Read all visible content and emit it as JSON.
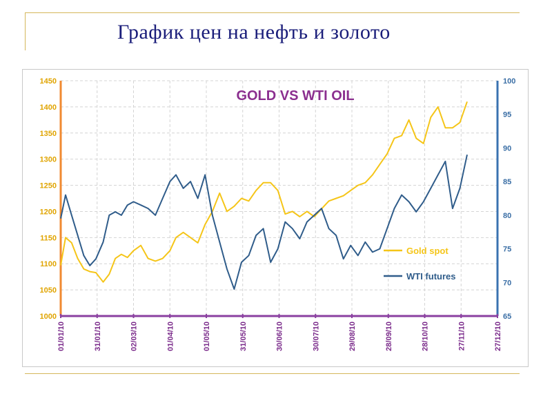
{
  "slide": {
    "title": "График цен на нефть и золото"
  },
  "colors": {
    "gold": "#f5c518",
    "oil": "#2f5c8a",
    "left_axis": "#f08a30",
    "right_axis": "#3a72b0",
    "base_axis": "#8a3fa0",
    "title": "#8b2f8f",
    "frame": "#d4b65a"
  },
  "chart_data": {
    "type": "line",
    "title": "GOLD VS WTI  OIL",
    "grid": true,
    "legend_position": "right",
    "x_ticks": [
      "01/01/10",
      "31/01/10",
      "02/03/10",
      "01/04/10",
      "01/05/10",
      "31/05/10",
      "30/06/10",
      "30/07/10",
      "29/08/10",
      "28/09/10",
      "28/10/10",
      "27/11/10",
      "27/12/10"
    ],
    "x_range": [
      "01/01/10",
      "27/12/10"
    ],
    "y_left": {
      "ticks": [
        1000,
        1050,
        1100,
        1150,
        1200,
        1250,
        1300,
        1350,
        1400,
        1450
      ],
      "range": [
        1000,
        1450
      ]
    },
    "y_right": {
      "ticks": [
        65,
        70,
        75,
        80,
        85,
        90,
        95,
        100
      ],
      "range": [
        65,
        100
      ]
    },
    "series": [
      {
        "name": "Gold spot",
        "axis": "left",
        "x": [
          "01/01/10",
          "05/01/10",
          "10/01/10",
          "15/01/10",
          "20/01/10",
          "25/01/10",
          "30/01/10",
          "05/02/10",
          "10/02/10",
          "15/02/10",
          "20/02/10",
          "25/02/10",
          "02/03/10",
          "08/03/10",
          "14/03/10",
          "20/03/10",
          "26/03/10",
          "01/04/10",
          "06/04/10",
          "12/04/10",
          "18/04/10",
          "24/04/10",
          "30/04/10",
          "06/05/10",
          "12/05/10",
          "18/05/10",
          "24/05/10",
          "30/05/10",
          "05/06/10",
          "11/06/10",
          "17/06/10",
          "23/06/10",
          "29/06/10",
          "05/07/10",
          "11/07/10",
          "17/07/10",
          "23/07/10",
          "29/07/10",
          "04/08/10",
          "10/08/10",
          "16/08/10",
          "22/08/10",
          "28/08/10",
          "03/09/10",
          "09/09/10",
          "15/09/10",
          "21/09/10",
          "27/09/10",
          "03/10/10",
          "09/10/10",
          "15/10/10",
          "21/10/10",
          "27/10/10",
          "02/11/10",
          "08/11/10",
          "14/11/10",
          "20/11/10",
          "26/11/10",
          "02/12/10"
        ],
        "values": [
          1097,
          1150,
          1140,
          1110,
          1090,
          1085,
          1083,
          1065,
          1080,
          1110,
          1118,
          1112,
          1125,
          1135,
          1110,
          1105,
          1110,
          1125,
          1150,
          1160,
          1150,
          1140,
          1175,
          1200,
          1235,
          1200,
          1210,
          1225,
          1220,
          1240,
          1255,
          1255,
          1240,
          1195,
          1200,
          1190,
          1200,
          1190,
          1205,
          1220,
          1225,
          1230,
          1240,
          1250,
          1255,
          1270,
          1290,
          1310,
          1340,
          1345,
          1375,
          1340,
          1330,
          1380,
          1400,
          1360,
          1360,
          1370,
          1410
        ]
      },
      {
        "name": "WTI futures",
        "axis": "right",
        "x": [
          "01/01/10",
          "05/01/10",
          "10/01/10",
          "15/01/10",
          "20/01/10",
          "25/01/10",
          "30/01/10",
          "05/02/10",
          "10/02/10",
          "15/02/10",
          "20/02/10",
          "25/02/10",
          "02/03/10",
          "08/03/10",
          "14/03/10",
          "20/03/10",
          "26/03/10",
          "01/04/10",
          "06/04/10",
          "12/04/10",
          "18/04/10",
          "24/04/10",
          "30/04/10",
          "06/05/10",
          "12/05/10",
          "18/05/10",
          "24/05/10",
          "30/05/10",
          "05/06/10",
          "11/06/10",
          "17/06/10",
          "23/06/10",
          "29/06/10",
          "05/07/10",
          "11/07/10",
          "17/07/10",
          "23/07/10",
          "29/07/10",
          "04/08/10",
          "10/08/10",
          "16/08/10",
          "22/08/10",
          "28/08/10",
          "03/09/10",
          "09/09/10",
          "15/09/10",
          "21/09/10",
          "27/09/10",
          "03/10/10",
          "09/10/10",
          "15/10/10",
          "21/10/10",
          "27/10/10",
          "02/11/10",
          "08/11/10",
          "14/11/10",
          "20/11/10",
          "26/11/10",
          "02/12/10"
        ],
        "values": [
          79.5,
          83,
          80,
          77,
          74,
          72.5,
          73.5,
          76,
          80,
          80.5,
          80,
          81.5,
          82,
          81.5,
          81,
          80,
          82.5,
          85,
          86,
          84,
          85,
          82.5,
          86,
          80,
          76,
          72,
          69,
          73,
          74,
          77,
          78,
          73,
          75,
          79,
          78,
          76.5,
          79,
          80,
          81,
          78,
          77,
          73.5,
          75.5,
          74,
          76,
          74.5,
          75,
          78,
          81,
          83,
          82,
          80.5,
          82,
          84,
          86,
          88,
          81,
          84,
          89
        ]
      }
    ]
  }
}
